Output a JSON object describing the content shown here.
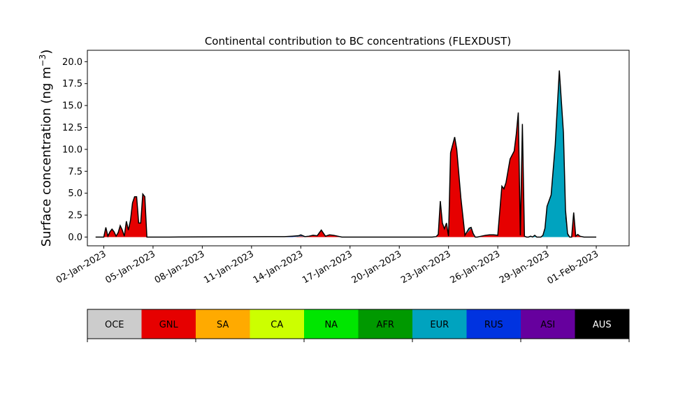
{
  "chart_data": {
    "type": "area",
    "title": "Continental contribution to BC concentrations (FLEXDUST)",
    "ylabel": "Surface concentration (ng m",
    "ylabel_superscript": "−3",
    "ylabel_close": ")",
    "xlabel": "",
    "ylim": [
      -1.0,
      21.3
    ],
    "xlim": [
      "2023-01-01T00:00",
      "2023-02-03T00:00"
    ],
    "yticks": [
      0.0,
      2.5,
      5.0,
      7.5,
      10.0,
      12.5,
      15.0,
      17.5,
      20.0
    ],
    "ytick_labels": [
      "0.0",
      "2.5",
      "5.0",
      "7.5",
      "10.0",
      "12.5",
      "15.0",
      "17.5",
      "20.0"
    ],
    "xticks": [
      "2023-01-02",
      "2023-01-05",
      "2023-01-08",
      "2023-01-11",
      "2023-01-14",
      "2023-01-17",
      "2023-01-20",
      "2023-01-23",
      "2023-01-26",
      "2023-01-29",
      "2023-02-01"
    ],
    "xtick_labels": [
      "02-Jan-2023",
      "05-Jan-2023",
      "08-Jan-2023",
      "11-Jan-2023",
      "14-Jan-2023",
      "17-Jan-2023",
      "20-Jan-2023",
      "23-Jan-2023",
      "26-Jan-2023",
      "29-Jan-2023",
      "01-Feb-2023"
    ],
    "grid": false,
    "legend_placement": "bottom",
    "legend": [
      {
        "label": "OCE",
        "color": "#cccccc",
        "text_color": "#000000"
      },
      {
        "label": "GNL",
        "color": "#e60000",
        "text_color": "#000000"
      },
      {
        "label": "SA",
        "color": "#ffaa00",
        "text_color": "#000000"
      },
      {
        "label": "CA",
        "color": "#ccff00",
        "text_color": "#000000"
      },
      {
        "label": "NA",
        "color": "#00e600",
        "text_color": "#000000"
      },
      {
        "label": "AFR",
        "color": "#009900",
        "text_color": "#000000"
      },
      {
        "label": "EUR",
        "color": "#00a3bf",
        "text_color": "#000000"
      },
      {
        "label": "RUS",
        "color": "#0033e0",
        "text_color": "#000000"
      },
      {
        "label": "ASI",
        "color": "#66009e",
        "text_color": "#000000"
      },
      {
        "label": "AUS",
        "color": "#000000",
        "text_color": "#ffffff"
      }
    ],
    "total_line_color": "#000000",
    "x": [
      "2023-01-01T12:00",
      "2023-01-02T00:00",
      "2023-01-02T03:00",
      "2023-01-02T06:00",
      "2023-01-02T09:00",
      "2023-01-02T12:00",
      "2023-01-02T15:00",
      "2023-01-02T18:00",
      "2023-01-02T21:00",
      "2023-01-03T00:00",
      "2023-01-03T03:00",
      "2023-01-03T06:00",
      "2023-01-03T09:00",
      "2023-01-03T12:00",
      "2023-01-03T15:00",
      "2023-01-03T18:00",
      "2023-01-03T21:00",
      "2023-01-04T00:00",
      "2023-01-04T03:00",
      "2023-01-04T06:00",
      "2023-01-04T09:00",
      "2023-01-04T12:00",
      "2023-01-04T15:00",
      "2023-01-04T18:00",
      "2023-01-04T21:00",
      "2023-01-05T00:00",
      "2023-01-05T06:00",
      "2023-01-06T00:00",
      "2023-01-13T00:00",
      "2023-01-13T12:00",
      "2023-01-13T21:00",
      "2023-01-14T00:00",
      "2023-01-14T06:00",
      "2023-01-14T12:00",
      "2023-01-14T18:00",
      "2023-01-15T00:00",
      "2023-01-15T06:00",
      "2023-01-15T12:00",
      "2023-01-15T18:00",
      "2023-01-16T00:00",
      "2023-01-16T06:00",
      "2023-01-16T12:00",
      "2023-01-17T00:00",
      "2023-01-17T12:00",
      "2023-01-18T00:00",
      "2023-01-21T12:00",
      "2023-01-22T00:00",
      "2023-01-22T06:00",
      "2023-01-22T09:00",
      "2023-01-22T12:00",
      "2023-01-22T15:00",
      "2023-01-22T18:00",
      "2023-01-22T21:00",
      "2023-01-23T00:00",
      "2023-01-23T03:00",
      "2023-01-23T06:00",
      "2023-01-23T09:00",
      "2023-01-23T12:00",
      "2023-01-23T18:00",
      "2023-01-24T00:00",
      "2023-01-24T06:00",
      "2023-01-24T09:00",
      "2023-01-24T12:00",
      "2023-01-24T15:00",
      "2023-01-24T18:00",
      "2023-01-25T00:00",
      "2023-01-25T06:00",
      "2023-01-25T12:00",
      "2023-01-25T18:00",
      "2023-01-26T00:00",
      "2023-01-26T06:00",
      "2023-01-26T09:00",
      "2023-01-26T12:00",
      "2023-01-26T18:00",
      "2023-01-27T00:00",
      "2023-01-27T03:00",
      "2023-01-27T06:00",
      "2023-01-27T09:00",
      "2023-01-27T12:00",
      "2023-01-27T15:00",
      "2023-01-27T18:00",
      "2023-01-27T21:00",
      "2023-01-28T00:00",
      "2023-01-28T03:00",
      "2023-01-28T06:00",
      "2023-01-28T09:00",
      "2023-01-28T12:00",
      "2023-01-28T15:00",
      "2023-01-28T18:00",
      "2023-01-28T21:00",
      "2023-01-29T00:00",
      "2023-01-29T06:00",
      "2023-01-29T12:00",
      "2023-01-29T18:00",
      "2023-01-30T00:00",
      "2023-01-30T03:00",
      "2023-01-30T06:00",
      "2023-01-30T09:00",
      "2023-01-30T12:00",
      "2023-01-30T15:00",
      "2023-01-30T18:00",
      "2023-01-30T21:00",
      "2023-01-31T00:00",
      "2023-01-31T06:00",
      "2023-01-31T12:00",
      "2023-02-01T00:00"
    ],
    "series": [
      {
        "name": "GNL",
        "color": "#e60000",
        "values": [
          0,
          0,
          1.1,
          0.1,
          0.6,
          0.9,
          0.6,
          0.1,
          0.5,
          1.3,
          0.8,
          0.1,
          1.8,
          0.8,
          1.9,
          3.9,
          4.6,
          4.6,
          1.6,
          1.6,
          4.9,
          4.6,
          0,
          0,
          0,
          0,
          0,
          0,
          0,
          0,
          0.05,
          0.1,
          0,
          0.1,
          0.2,
          0.1,
          0.7,
          0.1,
          0.25,
          0.2,
          0.05,
          0,
          0,
          0,
          0,
          0,
          0,
          0,
          0.2,
          3.9,
          1.5,
          0.9,
          1.5,
          0.1,
          9.6,
          10.5,
          11.4,
          10.0,
          4.5,
          0.2,
          0.7,
          1.0,
          0.2,
          0,
          0,
          0.1,
          0.2,
          0.25,
          0.25,
          0.2,
          5.8,
          5.5,
          6.2,
          8.9,
          9.8,
          11.7,
          14.2,
          0.2,
          12.9,
          0.1,
          0,
          0,
          0,
          0,
          0,
          0,
          0,
          0,
          0,
          0,
          0,
          0,
          0,
          0,
          0,
          0,
          0,
          0,
          0,
          2.8,
          0.1,
          0.3,
          0.1,
          0,
          0,
          0
        ]
      },
      {
        "name": "EUR",
        "color": "#00a3bf",
        "values": [
          0,
          0,
          0,
          0,
          0,
          0,
          0,
          0,
          0,
          0,
          0,
          0,
          0,
          0,
          0,
          0,
          0,
          0,
          0,
          0,
          0,
          0,
          0,
          0,
          0,
          0,
          0,
          0,
          0,
          0,
          0.05,
          0.05,
          0,
          0,
          0,
          0,
          0,
          0,
          0,
          0,
          0,
          0,
          0,
          0,
          0,
          0,
          0,
          0,
          0,
          0,
          0,
          0,
          0,
          0,
          0,
          0,
          0,
          0,
          0,
          0,
          0.3,
          0.1,
          0.2,
          0,
          0,
          0,
          0,
          0,
          0,
          0,
          0,
          0,
          0,
          0,
          0,
          0,
          0,
          0,
          0,
          0,
          0,
          0,
          0.1,
          0,
          0.2,
          0,
          0,
          0,
          0.2,
          1.0,
          3.5,
          4.8,
          10.5,
          19.0,
          11.5,
          2.1,
          0.2,
          0,
          0,
          0,
          0,
          0,
          0,
          0,
          0,
          0
        ]
      },
      {
        "name": "RUS",
        "color": "#0033e0",
        "values": [
          0,
          0,
          0,
          0,
          0,
          0,
          0,
          0,
          0,
          0,
          0,
          0,
          0,
          0,
          0,
          0,
          0,
          0,
          0,
          0,
          0,
          0,
          0,
          0,
          0,
          0,
          0,
          0,
          0.05,
          0.1,
          0.05,
          0.1,
          0.05,
          0,
          0,
          0.05,
          0.1,
          0,
          0,
          0,
          0.05,
          0,
          0,
          0,
          0,
          0,
          0,
          0.05,
          0.1,
          0.2,
          0.1,
          0.05,
          0.1,
          0,
          0,
          0,
          0,
          0,
          0,
          0,
          0,
          0,
          0,
          0,
          0,
          0,
          0,
          0,
          0,
          0,
          0,
          0,
          0,
          0,
          0,
          0,
          0,
          0,
          0,
          0,
          0,
          0,
          0,
          0,
          0,
          0,
          0,
          0,
          0,
          0,
          0,
          0,
          0,
          0,
          0,
          0,
          0,
          0,
          0,
          0,
          0,
          0,
          0,
          0,
          0,
          0
        ]
      },
      {
        "name": "AUS",
        "color": "#000000",
        "values": [
          0,
          0,
          0,
          0,
          0,
          0,
          0,
          0,
          0,
          0,
          0,
          0,
          0,
          0,
          0,
          0,
          0,
          0,
          0,
          0,
          0,
          0,
          0,
          0,
          0,
          0,
          0,
          0,
          0,
          0,
          0,
          0,
          0,
          0,
          0,
          0,
          0,
          0,
          0,
          0,
          0,
          0,
          0,
          0,
          0,
          0,
          0,
          0,
          0,
          0,
          0,
          0,
          0,
          0,
          0,
          0,
          0,
          0,
          0,
          0,
          0,
          0,
          0,
          0,
          0,
          0,
          0,
          0,
          0,
          0,
          0,
          0,
          0,
          0,
          0,
          0,
          0,
          0,
          0,
          0,
          0,
          0,
          0,
          0,
          0,
          0,
          0,
          0,
          0,
          0,
          0,
          0,
          0,
          0,
          0.4,
          1.0,
          0.2,
          0,
          0,
          0,
          0,
          0,
          0,
          0,
          0,
          0
        ]
      }
    ]
  }
}
